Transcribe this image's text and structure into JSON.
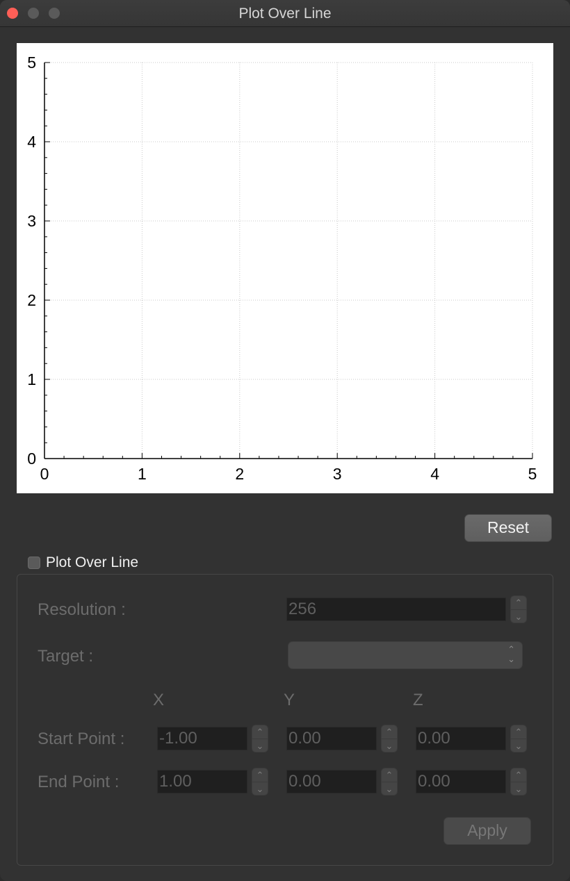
{
  "window": {
    "title": "Plot Over Line"
  },
  "chart_data": {
    "type": "line",
    "series": [],
    "xlim": [
      0,
      5
    ],
    "ylim": [
      0,
      5
    ],
    "x_ticks": [
      "0",
      "1",
      "2",
      "3",
      "4",
      "5"
    ],
    "y_ticks": [
      "0",
      "1",
      "2",
      "3",
      "4",
      "5"
    ],
    "grid": true,
    "title": "",
    "xlabel": "",
    "ylabel": ""
  },
  "toolbar": {
    "reset_label": "Reset"
  },
  "plot_over_line": {
    "checkbox_label": "Plot Over Line",
    "checked": false,
    "resolution_label": "Resolution :",
    "resolution_value": "256",
    "target_label": "Target :",
    "target_value": "",
    "axis_x": "X",
    "axis_y": "Y",
    "axis_z": "Z",
    "start_label": "Start Point :",
    "start": {
      "x": "-1.00",
      "y": "0.00",
      "z": "0.00"
    },
    "end_label": "End Point :",
    "end": {
      "x": "1.00",
      "y": "0.00",
      "z": "0.00"
    },
    "apply_label": "Apply"
  },
  "colors": {
    "close_button": "#fe5f57",
    "window_bg": "#323232",
    "plot_bg": "#ffffff"
  }
}
